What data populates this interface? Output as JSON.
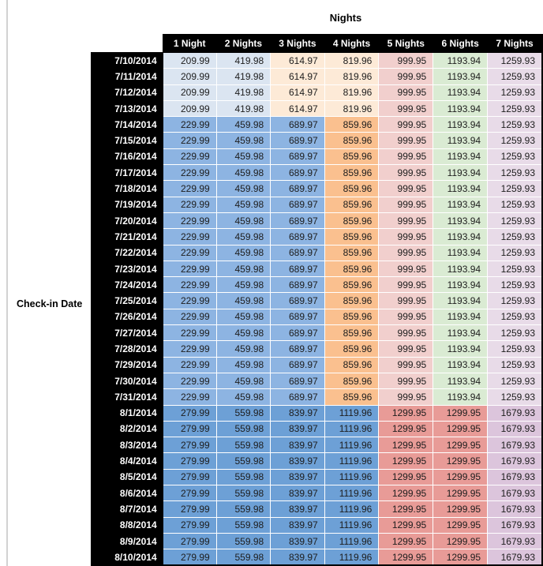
{
  "chart_data": {
    "type": "table",
    "title": "Nights",
    "row_axis_label": "Check-in Date",
    "columns": [
      "1 Night",
      "2 Nights",
      "3 Nights",
      "4 Nights",
      "5 Nights",
      "6 Nights",
      "7 Nights"
    ],
    "tier_palettes": {
      "A": [
        "#dbe5f1",
        "#dbe5f1",
        "#fdead7",
        "#fdead7",
        "#f1cfcd",
        "#daebd3",
        "#e8dbe8"
      ],
      "B": [
        "#8db4e2",
        "#8db4e2",
        "#8db4e2",
        "#fac08f",
        "#f1cfcd",
        "#daebd3",
        "#e8dbe8"
      ],
      "C": [
        "#6da0d6",
        "#6da0d6",
        "#6da0d6",
        "#6da0d6",
        "#e89b97",
        "#e89b97",
        "#dcc5dc"
      ]
    },
    "rows": [
      {
        "date": "7/10/2014",
        "group": "A",
        "values": [
          "209.99",
          "419.98",
          "614.97",
          "819.96",
          "999.95",
          "1193.94",
          "1259.93"
        ]
      },
      {
        "date": "7/11/2014",
        "group": "A",
        "values": [
          "209.99",
          "419.98",
          "614.97",
          "819.96",
          "999.95",
          "1193.94",
          "1259.93"
        ]
      },
      {
        "date": "7/12/2014",
        "group": "A",
        "values": [
          "209.99",
          "419.98",
          "614.97",
          "819.96",
          "999.95",
          "1193.94",
          "1259.93"
        ]
      },
      {
        "date": "7/13/2014",
        "group": "A",
        "values": [
          "209.99",
          "419.98",
          "614.97",
          "819.96",
          "999.95",
          "1193.94",
          "1259.93"
        ]
      },
      {
        "date": "7/14/2014",
        "group": "B",
        "values": [
          "229.99",
          "459.98",
          "689.97",
          "859.96",
          "999.95",
          "1193.94",
          "1259.93"
        ]
      },
      {
        "date": "7/15/2014",
        "group": "B",
        "values": [
          "229.99",
          "459.98",
          "689.97",
          "859.96",
          "999.95",
          "1193.94",
          "1259.93"
        ]
      },
      {
        "date": "7/16/2014",
        "group": "B",
        "values": [
          "229.99",
          "459.98",
          "689.97",
          "859.96",
          "999.95",
          "1193.94",
          "1259.93"
        ]
      },
      {
        "date": "7/17/2014",
        "group": "B",
        "values": [
          "229.99",
          "459.98",
          "689.97",
          "859.96",
          "999.95",
          "1193.94",
          "1259.93"
        ]
      },
      {
        "date": "7/18/2014",
        "group": "B",
        "values": [
          "229.99",
          "459.98",
          "689.97",
          "859.96",
          "999.95",
          "1193.94",
          "1259.93"
        ]
      },
      {
        "date": "7/19/2014",
        "group": "B",
        "values": [
          "229.99",
          "459.98",
          "689.97",
          "859.96",
          "999.95",
          "1193.94",
          "1259.93"
        ]
      },
      {
        "date": "7/20/2014",
        "group": "B",
        "values": [
          "229.99",
          "459.98",
          "689.97",
          "859.96",
          "999.95",
          "1193.94",
          "1259.93"
        ]
      },
      {
        "date": "7/21/2014",
        "group": "B",
        "values": [
          "229.99",
          "459.98",
          "689.97",
          "859.96",
          "999.95",
          "1193.94",
          "1259.93"
        ]
      },
      {
        "date": "7/22/2014",
        "group": "B",
        "values": [
          "229.99",
          "459.98",
          "689.97",
          "859.96",
          "999.95",
          "1193.94",
          "1259.93"
        ]
      },
      {
        "date": "7/23/2014",
        "group": "B",
        "values": [
          "229.99",
          "459.98",
          "689.97",
          "859.96",
          "999.95",
          "1193.94",
          "1259.93"
        ]
      },
      {
        "date": "7/24/2014",
        "group": "B",
        "values": [
          "229.99",
          "459.98",
          "689.97",
          "859.96",
          "999.95",
          "1193.94",
          "1259.93"
        ]
      },
      {
        "date": "7/25/2014",
        "group": "B",
        "values": [
          "229.99",
          "459.98",
          "689.97",
          "859.96",
          "999.95",
          "1193.94",
          "1259.93"
        ]
      },
      {
        "date": "7/26/2014",
        "group": "B",
        "values": [
          "229.99",
          "459.98",
          "689.97",
          "859.96",
          "999.95",
          "1193.94",
          "1259.93"
        ]
      },
      {
        "date": "7/27/2014",
        "group": "B",
        "values": [
          "229.99",
          "459.98",
          "689.97",
          "859.96",
          "999.95",
          "1193.94",
          "1259.93"
        ]
      },
      {
        "date": "7/28/2014",
        "group": "B",
        "values": [
          "229.99",
          "459.98",
          "689.97",
          "859.96",
          "999.95",
          "1193.94",
          "1259.93"
        ]
      },
      {
        "date": "7/29/2014",
        "group": "B",
        "values": [
          "229.99",
          "459.98",
          "689.97",
          "859.96",
          "999.95",
          "1193.94",
          "1259.93"
        ]
      },
      {
        "date": "7/30/2014",
        "group": "B",
        "values": [
          "229.99",
          "459.98",
          "689.97",
          "859.96",
          "999.95",
          "1193.94",
          "1259.93"
        ]
      },
      {
        "date": "7/31/2014",
        "group": "B",
        "values": [
          "229.99",
          "459.98",
          "689.97",
          "859.96",
          "999.95",
          "1193.94",
          "1259.93"
        ]
      },
      {
        "date": "8/1/2014",
        "group": "C",
        "values": [
          "279.99",
          "559.98",
          "839.97",
          "1119.96",
          "1299.95",
          "1299.95",
          "1679.93"
        ]
      },
      {
        "date": "8/2/2014",
        "group": "C",
        "values": [
          "279.99",
          "559.98",
          "839.97",
          "1119.96",
          "1299.95",
          "1299.95",
          "1679.93"
        ]
      },
      {
        "date": "8/3/2014",
        "group": "C",
        "values": [
          "279.99",
          "559.98",
          "839.97",
          "1119.96",
          "1299.95",
          "1299.95",
          "1679.93"
        ]
      },
      {
        "date": "8/4/2014",
        "group": "C",
        "values": [
          "279.99",
          "559.98",
          "839.97",
          "1119.96",
          "1299.95",
          "1299.95",
          "1679.93"
        ]
      },
      {
        "date": "8/5/2014",
        "group": "C",
        "values": [
          "279.99",
          "559.98",
          "839.97",
          "1119.96",
          "1299.95",
          "1299.95",
          "1679.93"
        ]
      },
      {
        "date": "8/6/2014",
        "group": "C",
        "values": [
          "279.99",
          "559.98",
          "839.97",
          "1119.96",
          "1299.95",
          "1299.95",
          "1679.93"
        ]
      },
      {
        "date": "8/7/2014",
        "group": "C",
        "values": [
          "279.99",
          "559.98",
          "839.97",
          "1119.96",
          "1299.95",
          "1299.95",
          "1679.93"
        ]
      },
      {
        "date": "8/8/2014",
        "group": "C",
        "values": [
          "279.99",
          "559.98",
          "839.97",
          "1119.96",
          "1299.95",
          "1299.95",
          "1679.93"
        ]
      },
      {
        "date": "8/9/2014",
        "group": "C",
        "values": [
          "279.99",
          "559.98",
          "839.97",
          "1119.96",
          "1299.95",
          "1299.95",
          "1679.93"
        ]
      },
      {
        "date": "8/10/2014",
        "group": "C",
        "values": [
          "279.99",
          "559.98",
          "839.97",
          "1119.96",
          "1299.95",
          "1299.95",
          "1679.93"
        ]
      }
    ]
  },
  "colors": {
    "header_bg": "#000000",
    "header_text": "#ffffff",
    "cell_text": "#1d1d1d",
    "tier_a_blue": "#dbe5f1",
    "tier_a_tan": "#fdead7",
    "tier_b_blue": "#8db4e2",
    "tier_b_orange": "#fac08f",
    "shared_pink": "#f1cfcd",
    "shared_green": "#daebd3",
    "shared_lavender": "#e8dbe8",
    "tier_c_blue": "#6da0d6",
    "tier_c_salmon": "#e89b97",
    "tier_c_mauve": "#dcc5dc"
  }
}
